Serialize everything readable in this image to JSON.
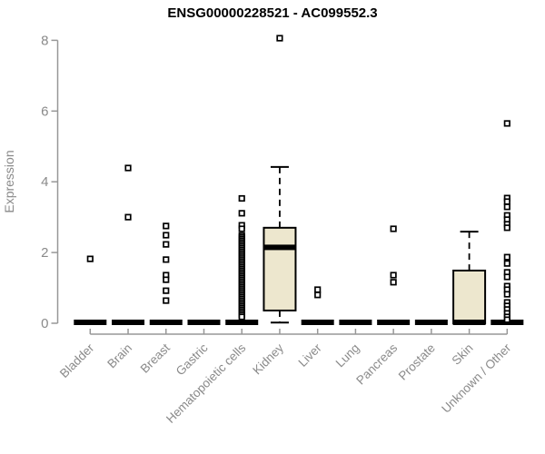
{
  "chart_data": {
    "type": "boxplot",
    "title": "ENSG00000228521 - AC099552.3",
    "ylabel": "Expression",
    "xlabel": "",
    "ylim": [
      0,
      8
    ],
    "yticks": [
      0,
      2,
      4,
      6,
      8
    ],
    "grid": false,
    "legend": "none",
    "colors": {
      "box_fill": "#EDE7CE",
      "box_stroke": "#000000",
      "median_color": "#000000",
      "axis_color": "#979797",
      "tick_label_color": "#8A8A8A",
      "title_color": "#000000",
      "outlier_fill": "#FFFFFF",
      "outlier_stroke": "#000000",
      "background": "#FFFFFF"
    },
    "categories": [
      "Bladder",
      "Brain",
      "Breast",
      "Gastric",
      "Hematopoietic cells",
      "Kidney",
      "Liver",
      "Lung",
      "Pancreas",
      "Prostate",
      "Skin",
      "Unknown / Other"
    ],
    "series": [
      {
        "category": "Bladder",
        "q1": 0,
        "median": 0,
        "q3": 0,
        "whisker_low": 0,
        "whisker_high": 0,
        "outliers": [
          1.82
        ]
      },
      {
        "category": "Brain",
        "q1": 0,
        "median": 0,
        "q3": 0,
        "whisker_low": 0,
        "whisker_high": 0,
        "outliers": [
          4.39,
          3.0
        ]
      },
      {
        "category": "Breast",
        "q1": 0,
        "median": 0,
        "q3": 0,
        "whisker_low": 0,
        "whisker_high": 0,
        "outliers": [
          2.75,
          2.49,
          2.23,
          1.8,
          1.36,
          1.23,
          0.92,
          0.64
        ]
      },
      {
        "category": "Gastric",
        "q1": 0,
        "median": 0,
        "q3": 0,
        "whisker_low": 0,
        "whisker_high": 0,
        "outliers": []
      },
      {
        "category": "Hematopoietic cells",
        "q1": 0,
        "median": 0,
        "q3": 0,
        "whisker_low": 0,
        "whisker_high": 0,
        "outliers": [
          3.53,
          3.11,
          2.77,
          2.67,
          2.48,
          2.43,
          2.38,
          2.33,
          2.28,
          2.23,
          2.18,
          2.13,
          2.08,
          2.03,
          1.98,
          1.93,
          1.88,
          1.83,
          1.78,
          1.73,
          1.68,
          1.63,
          1.58,
          1.53,
          1.48,
          1.43,
          1.38,
          1.33,
          1.28,
          1.23,
          1.18,
          1.13,
          1.08,
          1.03,
          0.98,
          0.93,
          0.88,
          0.83,
          0.78,
          0.73,
          0.68,
          0.63,
          0.58,
          0.53,
          0.48,
          0.43,
          0.38,
          0.33,
          0.28,
          0.23,
          0.18
        ]
      },
      {
        "category": "Kidney",
        "q1": 0.36,
        "median": 2.12,
        "q3": 2.7,
        "whisker_low": 0.02,
        "whisker_high": 4.42,
        "outliers": [
          8.06
        ]
      },
      {
        "category": "Liver",
        "q1": 0,
        "median": 0,
        "q3": 0,
        "whisker_low": 0,
        "whisker_high": 0,
        "outliers": [
          0.95,
          0.8
        ]
      },
      {
        "category": "Lung",
        "q1": 0,
        "median": 0,
        "q3": 0,
        "whisker_low": 0,
        "whisker_high": 0,
        "outliers": []
      },
      {
        "category": "Pancreas",
        "q1": 0,
        "median": 0,
        "q3": 0,
        "whisker_low": 0,
        "whisker_high": 0,
        "outliers": [
          2.67,
          1.36,
          1.16
        ]
      },
      {
        "category": "Prostate",
        "q1": 0,
        "median": 0,
        "q3": 0,
        "whisker_low": 0,
        "whisker_high": 0,
        "outliers": []
      },
      {
        "category": "Skin",
        "q1": 0,
        "median": 0,
        "q3": 1.49,
        "whisker_low": 0,
        "whisker_high": 2.59,
        "outliers": []
      },
      {
        "category": "Unknown / Other",
        "q1": 0,
        "median": 0,
        "q3": 0,
        "whisker_low": 0,
        "whisker_high": 0,
        "outliers": [
          5.65,
          3.54,
          3.44,
          3.29,
          3.05,
          2.93,
          2.8,
          2.7,
          1.87,
          1.69,
          1.44,
          1.31,
          1.05,
          0.95,
          0.82,
          0.59,
          0.49,
          0.39,
          0.28,
          0.18,
          0.1
        ]
      }
    ]
  }
}
